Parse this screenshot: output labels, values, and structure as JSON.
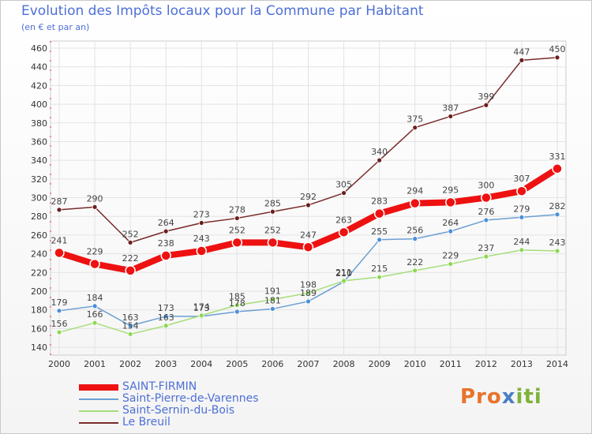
{
  "header": {
    "title": "Evolution des Impôts locaux pour la Commune par Habitant",
    "subtitle": "(en € et par an)"
  },
  "brand": {
    "part1": "Pro",
    "part2": "x",
    "part3": "iti"
  },
  "chart_data": {
    "type": "line",
    "title": "Evolution des Impôts locaux pour la Commune par Habitant",
    "subtitle": "(en € et par an)",
    "xlabel": "",
    "ylabel": "",
    "ylim": [
      140,
      460
    ],
    "yticks": [
      140,
      160,
      180,
      200,
      220,
      240,
      260,
      280,
      300,
      320,
      340,
      360,
      380,
      400,
      420,
      440,
      460
    ],
    "categories": [
      "2000",
      "2001",
      "2002",
      "2003",
      "2004",
      "2005",
      "2006",
      "2007",
      "2008",
      "2009",
      "2010",
      "2011",
      "2012",
      "2013",
      "2014"
    ],
    "grid": true,
    "legend_position": "bottom-left",
    "series": [
      {
        "name": "SAINT-FIRMIN",
        "color": "#ee1111",
        "marker_fill": "#ee1111",
        "width": 8,
        "emphasis": true,
        "values": [
          241,
          229,
          222,
          238,
          243,
          252,
          252,
          247,
          263,
          283,
          294,
          295,
          300,
          307,
          331
        ]
      },
      {
        "name": "Saint-Pierre-de-Varennes",
        "color": "#6b9fd4",
        "marker_fill": "#4a8fd9",
        "width": 1.5,
        "emphasis": false,
        "values": [
          179,
          184,
          163,
          173,
          173,
          178,
          181,
          189,
          210,
          255,
          256,
          264,
          276,
          279,
          282
        ]
      },
      {
        "name": "Saint-Sernin-du-Bois",
        "color": "#a6de7a",
        "marker_fill": "#8ed654",
        "width": 1.5,
        "emphasis": false,
        "values": [
          156,
          166,
          154,
          163,
          174,
          185,
          191,
          198,
          211,
          215,
          222,
          229,
          237,
          244,
          243
        ]
      },
      {
        "name": "Le Breuil",
        "color": "#7a2a2a",
        "marker_fill": "#6b1e1e",
        "width": 1.5,
        "emphasis": false,
        "values": [
          287,
          290,
          252,
          264,
          273,
          278,
          285,
          292,
          305,
          340,
          375,
          387,
          399,
          447,
          450
        ]
      }
    ]
  }
}
